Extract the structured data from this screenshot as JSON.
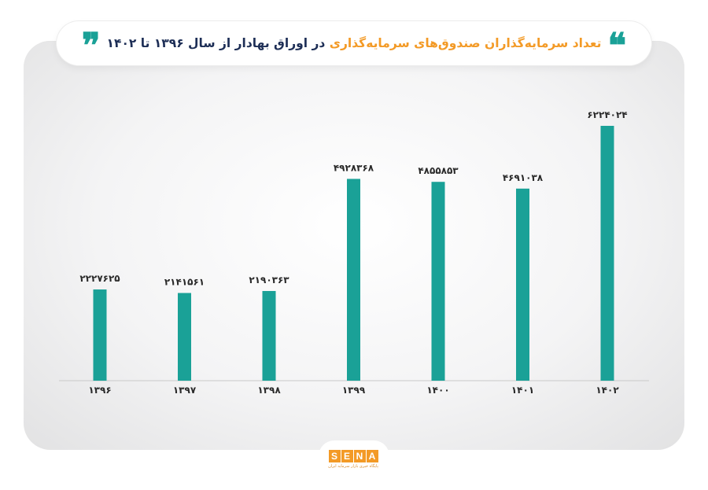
{
  "title": {
    "part_orange": "تعداد سرمایه‌گذاران صندوق‌های سرمایه‌گذاری",
    "part_navy": "در اوراق بهادار از سال ۱۳۹۶ تا ۱۴۰۲",
    "open_quote": "❝",
    "close_quote": "❞"
  },
  "colors": {
    "bar": "#1aa197",
    "title_orange": "#f39a26",
    "title_navy": "#1d2e56",
    "baseline": "#c9c9c9"
  },
  "chart_data": {
    "type": "bar",
    "categories": [
      "۱۳۹۶",
      "۱۳۹۷",
      "۱۳۹۸",
      "۱۳۹۹",
      "۱۴۰۰",
      "۱۴۰۱",
      "۱۴۰۲"
    ],
    "values": [
      2227625,
      2141561,
      2190363,
      4928368,
      4855853,
      4691038,
      6224024
    ],
    "value_labels": [
      "۲۲۲۷۶۲۵",
      "۲۱۴۱۵۶۱",
      "۲۱۹۰۳۶۳",
      "۴۹۲۸۳۶۸",
      "۴۸۵۵۸۵۳",
      "۴۶۹۱۰۳۸",
      "۶۲۲۴۰۲۴"
    ],
    "title": "تعداد سرمایه‌گذاران صندوق‌های سرمایه‌گذاری در اوراق بهادار از سال ۱۳۹۶ تا ۱۴۰۲",
    "xlabel": "",
    "ylabel": "",
    "ylim": [
      0,
      6224024
    ],
    "grid": false,
    "legend": "none"
  },
  "logo": {
    "letters": [
      "S",
      "E",
      "N",
      "A"
    ],
    "subtitle": "پایگاه خبری بازار سرمایه ایران"
  }
}
